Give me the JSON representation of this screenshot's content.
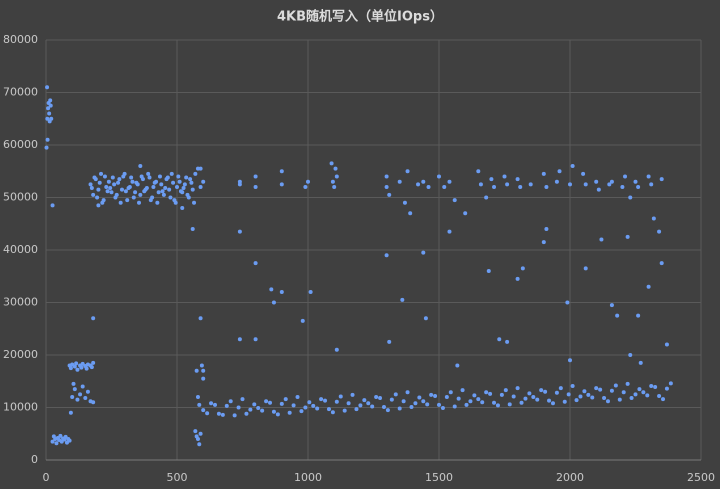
{
  "chart_data": {
    "type": "scatter",
    "title": "4KB随机写入（单位IOps）",
    "color": "#6b9cf2",
    "grid": true,
    "xlim": [
      0,
      2500
    ],
    "xticks": [
      0,
      500,
      1000,
      1500,
      2000,
      2500
    ],
    "ylim": [
      0,
      80000
    ],
    "yticks": [
      0,
      10000,
      20000,
      30000,
      40000,
      50000,
      60000,
      70000,
      80000
    ],
    "x": [
      2,
      4,
      5,
      6,
      8,
      10,
      12,
      14,
      16,
      18,
      20,
      25,
      25,
      30,
      35,
      40,
      45,
      50,
      55,
      60,
      65,
      70,
      75,
      80,
      85,
      90,
      90,
      95,
      100,
      110,
      115,
      120,
      130,
      135,
      140,
      150,
      155,
      160,
      170,
      175,
      180,
      100,
      110,
      120,
      130,
      140,
      150,
      160,
      170,
      180,
      95,
      105,
      180,
      170,
      180,
      190,
      200,
      210,
      220,
      230,
      240,
      250,
      260,
      270,
      280,
      290,
      300,
      310,
      320,
      330,
      340,
      350,
      360,
      370,
      380,
      390,
      400,
      410,
      420,
      430,
      440,
      450,
      460,
      470,
      480,
      490,
      500,
      510,
      520,
      530,
      540,
      550,
      560,
      570,
      175,
      185,
      195,
      205,
      215,
      225,
      235,
      245,
      255,
      265,
      275,
      285,
      295,
      305,
      315,
      325,
      335,
      345,
      355,
      365,
      375,
      385,
      395,
      405,
      415,
      425,
      435,
      445,
      455,
      465,
      475,
      485,
      495,
      505,
      515,
      525,
      535,
      545,
      555,
      565,
      360,
      520,
      200,
      580,
      600,
      590,
      570,
      575,
      580,
      585,
      590,
      575,
      580,
      585,
      595,
      600,
      600,
      590,
      560,
      590,
      600,
      630,
      660,
      690,
      720,
      750,
      780,
      810,
      840,
      870,
      900,
      930,
      960,
      990,
      1020,
      1050,
      1080,
      1110,
      1140,
      1170,
      1200,
      1230,
      1260,
      1290,
      1320,
      1350,
      1380,
      1410,
      1440,
      1470,
      1500,
      1530,
      1560,
      1590,
      1620,
      1650,
      1680,
      1710,
      1740,
      1770,
      1800,
      1830,
      1860,
      1890,
      1920,
      1950,
      1980,
      2010,
      2040,
      2070,
      2100,
      2130,
      2160,
      2190,
      2220,
      2250,
      2280,
      2310,
      2340,
      2370,
      615,
      645,
      675,
      705,
      735,
      765,
      795,
      825,
      855,
      885,
      915,
      945,
      975,
      1005,
      1035,
      1065,
      1095,
      1125,
      1155,
      1185,
      1215,
      1245,
      1275,
      1305,
      1335,
      1365,
      1395,
      1425,
      1455,
      1485,
      1515,
      1545,
      1575,
      1605,
      1635,
      1665,
      1695,
      1725,
      1755,
      1785,
      1815,
      1845,
      1875,
      1905,
      1935,
      1965,
      1995,
      2025,
      2055,
      2085,
      2115,
      2145,
      2175,
      2205,
      2235,
      2265,
      2295,
      2325,
      2355,
      2385,
      740,
      740,
      800,
      800,
      900,
      900,
      990,
      1000,
      1090,
      1095,
      1100,
      1105,
      1110,
      1300,
      1300,
      1350,
      1380,
      1420,
      1440,
      1460,
      1500,
      1520,
      1540,
      1650,
      1660,
      1700,
      1710,
      1750,
      1760,
      1800,
      1810,
      1850,
      1900,
      1910,
      1950,
      1960,
      2000,
      2010,
      2050,
      2060,
      2100,
      2110,
      2150,
      2160,
      2200,
      2210,
      2250,
      2260,
      2300,
      2310,
      2350,
      1310,
      1370,
      1560,
      1680,
      2230,
      740,
      740,
      800,
      800,
      860,
      870,
      900,
      980,
      1010,
      1110,
      1300,
      1310,
      1360,
      1390,
      1440,
      1450,
      1540,
      1600,
      1690,
      1730,
      1760,
      1800,
      1820,
      1900,
      1910,
      1990,
      2060,
      2120,
      2160,
      2180,
      2220,
      2230,
      2260,
      2270,
      2300,
      2320,
      2340,
      2350,
      2370,
      2000,
      1570
    ],
    "values": [
      59500,
      71000,
      65000,
      61000,
      67000,
      68000,
      66000,
      64500,
      68500,
      67500,
      65000,
      48500,
      3500,
      4500,
      4000,
      3200,
      4200,
      3800,
      4600,
      3500,
      4100,
      3900,
      4400,
      3300,
      4000,
      3700,
      18000,
      17500,
      18200,
      17800,
      18400,
      17200,
      18000,
      17600,
      18300,
      17900,
      17400,
      18200,
      18000,
      17700,
      18500,
      12000,
      13500,
      11500,
      12500,
      14000,
      11800,
      13000,
      11200,
      11000,
      9000,
      14500,
      27000,
      52500,
      50500,
      53500,
      51500,
      54500,
      49500,
      52000,
      53000,
      51000,
      52500,
      50500,
      53500,
      51500,
      54500,
      49500,
      52000,
      53000,
      51000,
      52500,
      50500,
      53500,
      51500,
      54500,
      49500,
      52000,
      53000,
      51000,
      52500,
      50500,
      53500,
      51500,
      54500,
      49500,
      52000,
      53000,
      51000,
      52500,
      50500,
      53500,
      51500,
      54500,
      51800,
      53800,
      50000,
      52800,
      49000,
      54000,
      51200,
      51800,
      53800,
      50000,
      52800,
      49000,
      54000,
      51200,
      51800,
      53800,
      50000,
      52800,
      49000,
      54000,
      51200,
      51800,
      53800,
      50000,
      52800,
      49000,
      54000,
      51200,
      51800,
      53800,
      50000,
      52800,
      49000,
      54000,
      51200,
      51800,
      53800,
      50000,
      52800,
      49000,
      56000,
      48000,
      48500,
      55500,
      53000,
      52000,
      5500,
      4500,
      4000,
      3000,
      5000,
      17000,
      12000,
      10500,
      18000,
      17000,
      15500,
      27000,
      44000,
      55500,
      9500,
      10800,
      8800,
      10300,
      8500,
      11600,
      9600,
      9900,
      11200,
      9200,
      10700,
      9000,
      12000,
      10000,
      10300,
      11600,
      9700,
      11100,
      9400,
      12400,
      10400,
      10800,
      12000,
      10100,
      11500,
      9800,
      12900,
      10800,
      11200,
      12400,
      10500,
      12000,
      10200,
      13300,
      11200,
      11600,
      12900,
      10900,
      12400,
      10600,
      13700,
      11700,
      12000,
      13300,
      11300,
      12800,
      11100,
      14100,
      12100,
      12400,
      13700,
      11800,
      13200,
      11500,
      14500,
      12500,
      12900,
      14100,
      12200,
      13600,
      8900,
      10500,
      8600,
      11200,
      10000,
      8800,
      10600,
      9400,
      10900,
      8700,
      11600,
      10400,
      9300,
      11000,
      9800,
      11300,
      9100,
      12100,
      10800,
      9700,
      11400,
      10200,
      11800,
      9500,
      12500,
      11200,
      10100,
      11900,
      10600,
      12200,
      9900,
      12900,
      11700,
      10500,
      12300,
      11000,
      12600,
      10400,
      13300,
      12100,
      10900,
      12700,
      11500,
      13000,
      10800,
      13700,
      12500,
      11400,
      13100,
      11900,
      13400,
      11200,
      14200,
      12900,
      11800,
      13500,
      12300,
      13900,
      11600,
      14600,
      53000,
      52500,
      54000,
      52000,
      55000,
      52500,
      52000,
      53000,
      56500,
      53000,
      52000,
      55500,
      54000,
      54000,
      52000,
      53000,
      55000,
      52500,
      53000,
      52000,
      54000,
      52000,
      53000,
      55000,
      52500,
      53500,
      52000,
      54000,
      52500,
      53500,
      52000,
      52500,
      54500,
      52000,
      53000,
      55000,
      52500,
      56000,
      54500,
      52500,
      53000,
      51500,
      52500,
      53000,
      52000,
      54000,
      53000,
      52000,
      54000,
      52500,
      53500,
      50500,
      49000,
      49500,
      50000,
      50000,
      43500,
      23000,
      37500,
      23000,
      32500,
      30000,
      32000,
      26500,
      32000,
      21000,
      39000,
      22500,
      30500,
      47000,
      39500,
      27000,
      43500,
      47000,
      36000,
      23000,
      22500,
      34500,
      36500,
      41500,
      44000,
      30000,
      36500,
      42000,
      29500,
      27500,
      42500,
      20000,
      27500,
      18500,
      33000,
      46000,
      43500,
      37500,
      22000,
      19000,
      18000
    ]
  }
}
